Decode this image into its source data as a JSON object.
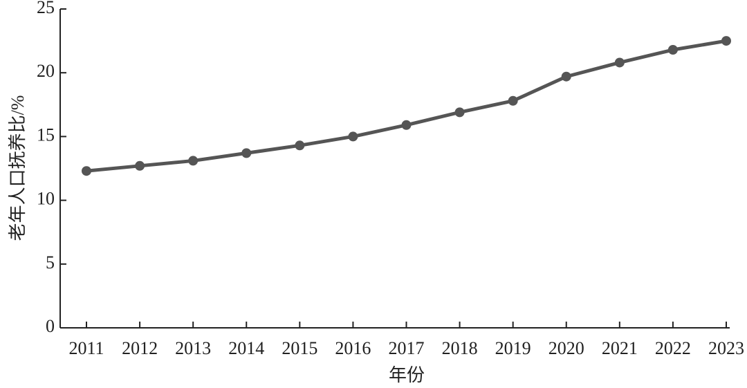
{
  "chart_data": {
    "type": "line",
    "xlabel": "年份",
    "ylabel": "老年人口抚养比/%",
    "categories": [
      "2011",
      "2012",
      "2013",
      "2014",
      "2015",
      "2016",
      "2017",
      "2018",
      "2019",
      "2020",
      "2021",
      "2022",
      "2023"
    ],
    "series": [
      {
        "color": "#555555",
        "values": [
          12.3,
          12.7,
          13.1,
          13.7,
          14.3,
          15.0,
          15.9,
          16.9,
          17.8,
          19.7,
          20.8,
          21.8,
          22.5
        ]
      }
    ],
    "ylim": [
      0,
      25
    ],
    "yticks": [
      0,
      5,
      10,
      15,
      20,
      25
    ],
    "grid": false
  }
}
